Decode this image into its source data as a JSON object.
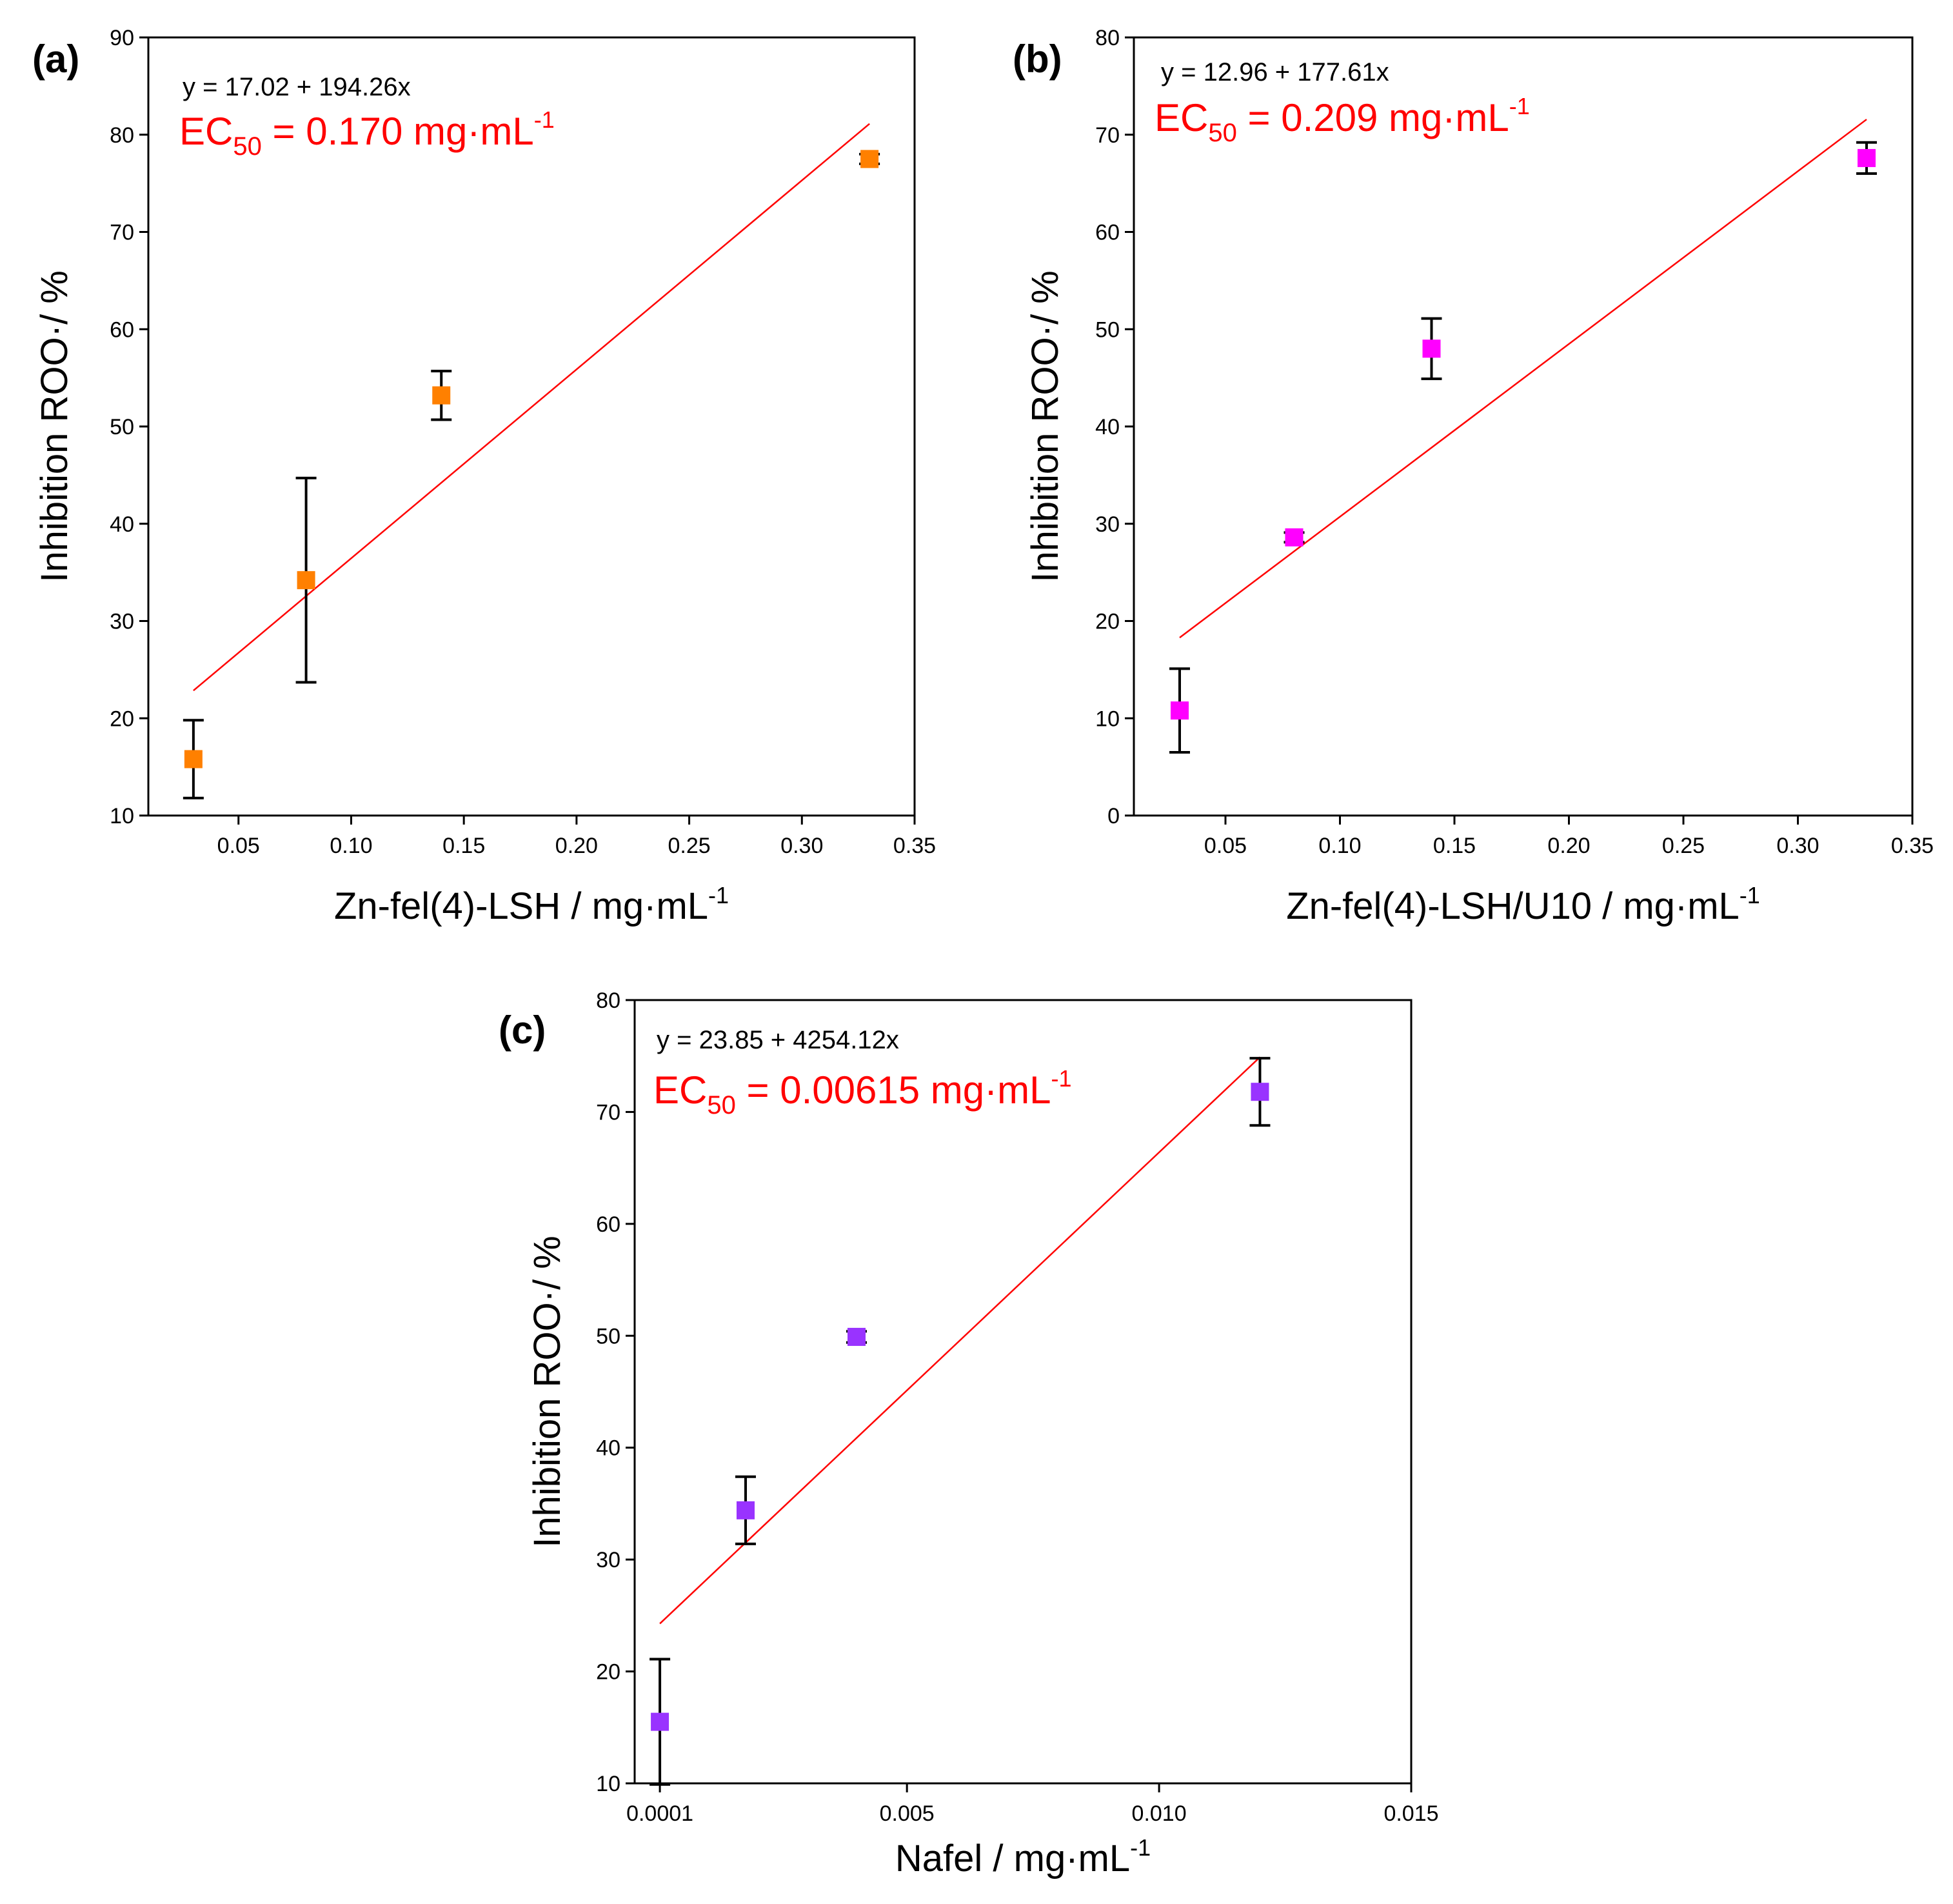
{
  "chart_data": [
    {
      "panel": "(a)",
      "type": "scatter",
      "xlabel_main": "Zn-fel(4)-LSH / mg·mL",
      "xlabel_sup": "-1",
      "ylabel": "Inhibition ROO·/ %",
      "xlim": [
        0.01,
        0.35
      ],
      "ylim": [
        10,
        90
      ],
      "xticks": [
        "0.05",
        "0.10",
        "0.15",
        "0.20",
        "0.25",
        "0.30",
        "0.35"
      ],
      "yticks": [
        "10",
        "20",
        "30",
        "40",
        "50",
        "60",
        "70",
        "80",
        "90"
      ],
      "points": [
        {
          "x": 0.03,
          "y": 15.8,
          "err": 4.0
        },
        {
          "x": 0.08,
          "y": 34.2,
          "err": 10.5
        },
        {
          "x": 0.14,
          "y": 53.2,
          "err": 2.5
        },
        {
          "x": 0.33,
          "y": 77.5,
          "err": 0.5
        }
      ],
      "marker_color": "#ff8000",
      "fit": {
        "intercept": 17.02,
        "slope": 194.26,
        "x_start": 0.03,
        "x_end": 0.33,
        "color": "#ff0000"
      },
      "equation": "y = 17.02 + 194.26x",
      "ec_prefix": "EC",
      "ec_sub": "50",
      "ec_value": " = 0.170 mg·mL",
      "ec_sup": "-1"
    },
    {
      "panel": "(b)",
      "type": "scatter",
      "xlabel_main": "Zn-fel(4)-LSH/U10 / mg·mL",
      "xlabel_sup": "-1",
      "ylabel": "Inhibition ROO·/ %",
      "xlim": [
        0.01,
        0.35
      ],
      "ylim": [
        0,
        80
      ],
      "xticks": [
        "0.05",
        "0.10",
        "0.15",
        "0.20",
        "0.25",
        "0.30",
        "0.35"
      ],
      "yticks": [
        "0",
        "10",
        "20",
        "30",
        "40",
        "50",
        "60",
        "70",
        "80"
      ],
      "points": [
        {
          "x": 0.03,
          "y": 10.8,
          "err": 4.3
        },
        {
          "x": 0.08,
          "y": 28.6,
          "err": 0.5
        },
        {
          "x": 0.14,
          "y": 48.0,
          "err": 3.1
        },
        {
          "x": 0.33,
          "y": 67.6,
          "err": 1.6
        }
      ],
      "marker_color": "#ff00ff",
      "fit": {
        "intercept": 12.96,
        "slope": 177.61,
        "x_start": 0.03,
        "x_end": 0.33,
        "color": "#ff0000"
      },
      "equation": "y = 12.96 + 177.61x",
      "ec_prefix": "EC",
      "ec_sub": "50",
      "ec_value": " = 0.209 mg·mL",
      "ec_sup": "-1"
    },
    {
      "panel": "(c)",
      "type": "scatter",
      "xlabel_main": "Nafel / mg·mL",
      "xlabel_sup": "-1",
      "ylabel": "Inhibition ROO·/ %",
      "xlim": [
        -0.0004,
        0.015
      ],
      "ylim": [
        10,
        80
      ],
      "xticks": [
        "0.0001",
        "0.005",
        "0.010",
        "0.015"
      ],
      "xtick_values": [
        0.0001,
        0.005,
        0.01,
        0.015
      ],
      "yticks": [
        "10",
        "20",
        "30",
        "40",
        "50",
        "60",
        "70",
        "80"
      ],
      "points": [
        {
          "x": 0.0001,
          "y": 15.5,
          "err": 5.6
        },
        {
          "x": 0.0018,
          "y": 34.4,
          "err": 3.0
        },
        {
          "x": 0.004,
          "y": 49.9,
          "err": 0.5
        },
        {
          "x": 0.012,
          "y": 71.8,
          "err": 3.0
        }
      ],
      "marker_color": "#9933ff",
      "fit": {
        "intercept": 23.85,
        "slope": 4254.12,
        "x_start": 0.0001,
        "x_end": 0.012,
        "color": "#ff0000"
      },
      "equation": "y = 23.85 + 4254.12x",
      "ec_prefix": "EC",
      "ec_sub": "50",
      "ec_value": " = 0.00615 mg·mL",
      "ec_sup": "-1"
    }
  ]
}
